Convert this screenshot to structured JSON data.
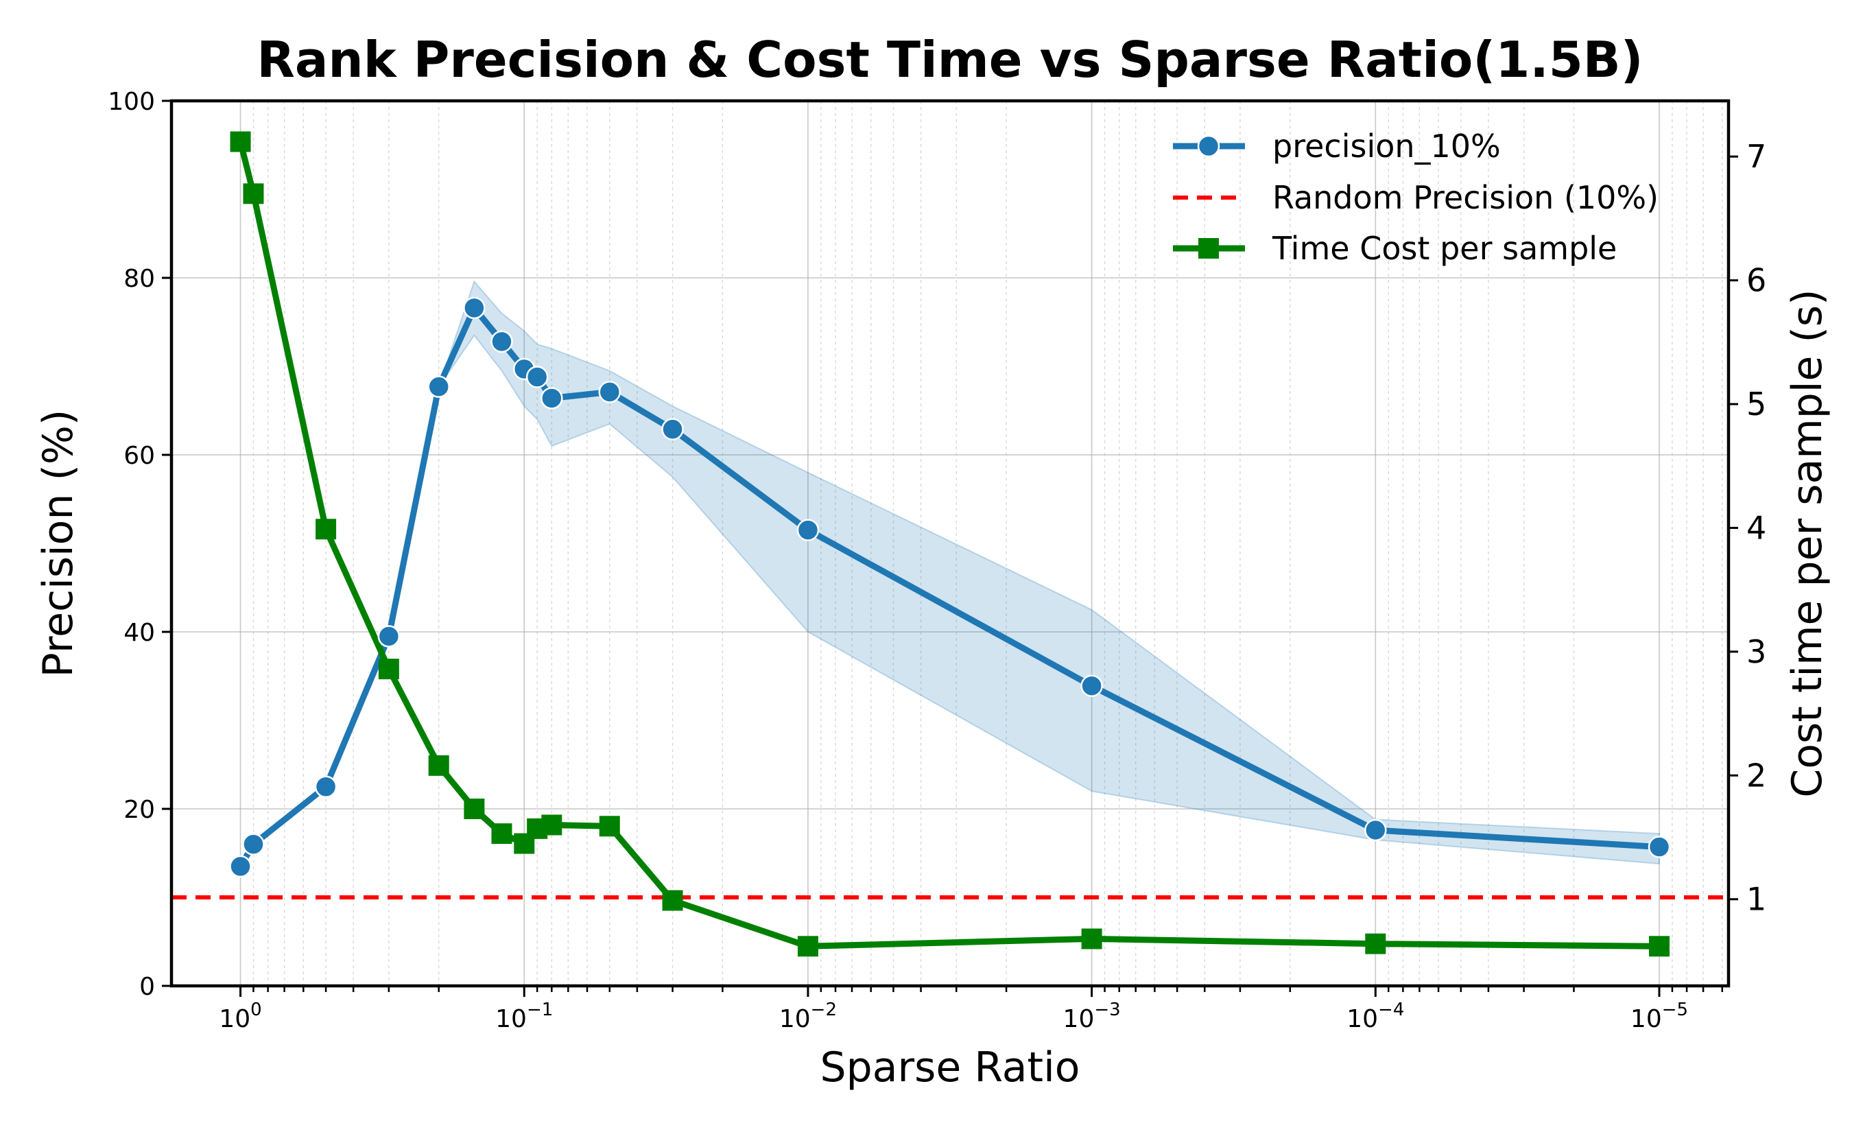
{
  "chart_data": {
    "type": "line",
    "title": "Rank Precision & Cost Time vs Sparse Ratio(1.5B)",
    "xlabel": "Sparse Ratio",
    "ylabel": "Precision (%)",
    "ylabel_right": "Cost time per sample (s)",
    "x_scale": "log",
    "x_inverted": true,
    "xlim": [
      1.75,
      5.7e-06
    ],
    "ylim": [
      0,
      100
    ],
    "ylim_right": [
      0.3,
      7.45
    ],
    "x_ticks": [
      {
        "value": 1,
        "base": "10",
        "exp": "0"
      },
      {
        "value": 0.1,
        "base": "10",
        "exp": "−1"
      },
      {
        "value": 0.01,
        "base": "10",
        "exp": "−2"
      },
      {
        "value": 0.001,
        "base": "10",
        "exp": "−3"
      },
      {
        "value": 0.0001,
        "base": "10",
        "exp": "−4"
      },
      {
        "value": 1e-05,
        "base": "10",
        "exp": "−5"
      }
    ],
    "y_ticks": [
      "0",
      "20",
      "40",
      "60",
      "80",
      "100"
    ],
    "y_ticks_right": [
      "1",
      "2",
      "3",
      "4",
      "5",
      "6",
      "7"
    ],
    "grid": true,
    "legend_position": "top-right",
    "series": [
      {
        "name": "precision_10%",
        "axis": "left",
        "color": "#1f77b4",
        "marker": "circle",
        "x": [
          1,
          0.9,
          0.5,
          0.3,
          0.2,
          0.15,
          0.12,
          0.1,
          0.09,
          0.08,
          0.05,
          0.03,
          0.01,
          0.001,
          0.0001,
          1e-05
        ],
        "values": [
          13.5,
          16,
          22.5,
          39.5,
          67.7,
          76.6,
          72.8,
          69.7,
          68.8,
          66.4,
          67.1,
          62.9,
          51.5,
          33.9,
          17.6,
          15.7
        ],
        "band_upper": [
          13.5,
          16,
          22.5,
          39.5,
          67.7,
          79.6,
          76,
          74,
          72.5,
          72,
          69.5,
          65.5,
          58,
          42.5,
          18.8,
          17.2
        ],
        "band_lower": [
          13.5,
          16,
          22.5,
          39.5,
          67.7,
          73.5,
          69.5,
          65.5,
          64,
          61,
          63.5,
          57.5,
          40,
          22,
          16.5,
          13.8
        ]
      },
      {
        "name": "Random Precision (10%)",
        "axis": "left",
        "color": "#ff0000",
        "style": "dashed",
        "values": [
          10
        ]
      },
      {
        "name": "Time Cost per sample",
        "axis": "right",
        "color": "#008000",
        "marker": "square",
        "x": [
          1,
          0.9,
          0.5,
          0.3,
          0.2,
          0.15,
          0.12,
          0.1,
          0.09,
          0.08,
          0.05,
          0.03,
          0.01,
          0.001,
          0.0001,
          1e-05
        ],
        "values": [
          7.12,
          6.7,
          3.99,
          2.86,
          2.08,
          1.73,
          1.53,
          1.45,
          1.57,
          1.6,
          1.59,
          0.99,
          0.62,
          0.68,
          0.64,
          0.62
        ]
      }
    ]
  }
}
